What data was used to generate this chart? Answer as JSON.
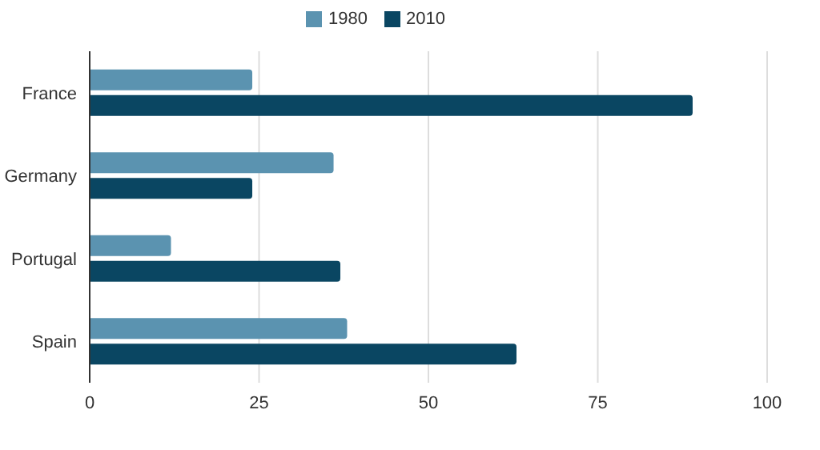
{
  "chart_data": {
    "type": "bar",
    "orientation": "horizontal",
    "categories": [
      "France",
      "Germany",
      "Portugal",
      "Spain"
    ],
    "series": [
      {
        "name": "1980",
        "color": "#5b93b0",
        "values": [
          24,
          36,
          12,
          38
        ]
      },
      {
        "name": "2010",
        "color": "#0a4662",
        "values": [
          89,
          24,
          37,
          63
        ]
      }
    ],
    "xlim": [
      0,
      100
    ],
    "xticks": [
      0,
      25,
      50,
      75,
      100
    ],
    "grid": "x",
    "legend": "top"
  }
}
